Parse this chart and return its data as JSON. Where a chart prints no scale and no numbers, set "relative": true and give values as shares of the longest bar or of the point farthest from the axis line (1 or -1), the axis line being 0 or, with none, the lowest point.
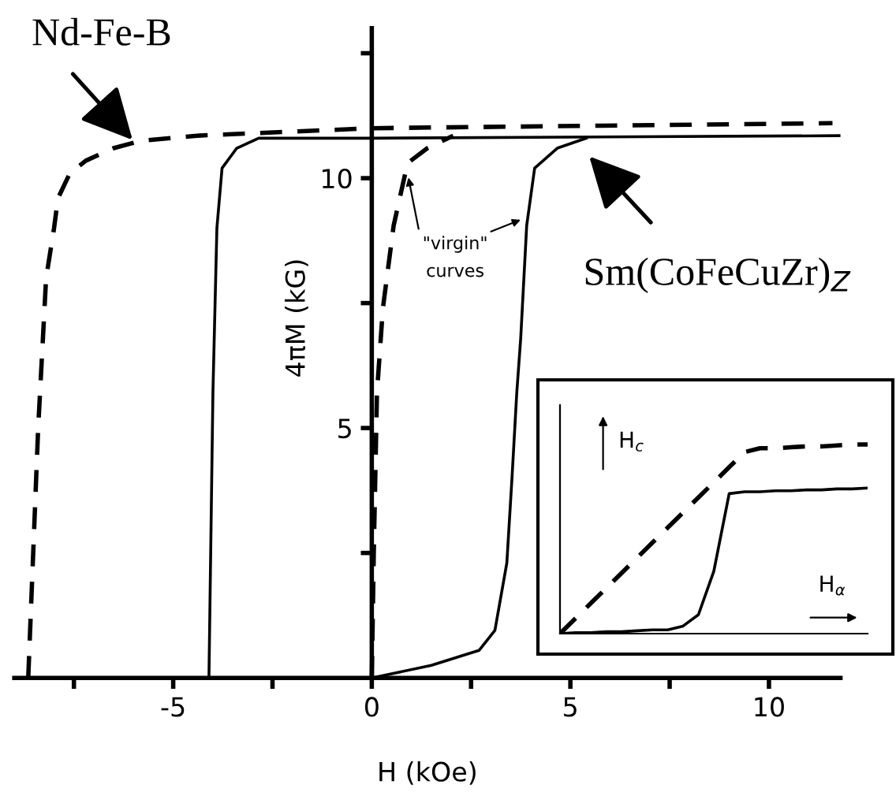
{
  "chart_data": [
    {
      "type": "line",
      "xlabel": "H (kOe)",
      "ylabel": "4πM (kG)",
      "xlim": [
        -9,
        11.8
      ],
      "ylim": [
        0,
        13
      ],
      "xticks": [
        {
          "value": -7.5,
          "label": null
        },
        -5,
        {
          "value": -2.5,
          "label": null
        },
        0,
        {
          "value": 2.5,
          "label": null
        },
        5,
        {
          "value": 7.5,
          "label": null
        },
        10
      ],
      "yticks": [
        {
          "value": 2.5,
          "label": null
        },
        5,
        {
          "value": 7.5,
          "label": null
        },
        10,
        {
          "value": 12.5,
          "label": null
        }
      ],
      "series": [
        {
          "color": "#000000",
          "line_style": "dashed",
          "x": [
            -8.65,
            -8.4,
            -8.2,
            -8.0,
            -7.9,
            -7.6,
            -7.2,
            -6.5,
            -5.8,
            -4.4,
            0,
            11.6
          ],
          "values": [
            0,
            5,
            8,
            9.0,
            9.6,
            10.1,
            10.35,
            10.6,
            10.75,
            10.85,
            11.0,
            11.1
          ]
        },
        {
          "color": "#000000",
          "line_style": "solid",
          "x": [
            -4.1,
            -4.0,
            -3.9,
            -3.77,
            -3.4,
            -2.85,
            0,
            11.8
          ],
          "values": [
            0,
            5.7,
            9.0,
            10.2,
            10.6,
            10.8,
            10.8,
            10.85
          ]
        },
        {
          "color": "#000000",
          "line_style": "dashed",
          "x": [
            0.0,
            0.05,
            0.13,
            0.28,
            0.55,
            0.9,
            1.4,
            2.05
          ],
          "values": [
            0,
            2.5,
            5.7,
            7.4,
            9.05,
            10.3,
            10.6,
            10.85
          ]
        },
        {
          "color": "#000000",
          "line_style": "solid",
          "x": [
            0,
            1.5,
            2.7,
            3.1,
            3.4,
            3.53,
            3.65,
            3.75,
            3.9,
            4.1,
            4.67,
            5.4
          ],
          "values": [
            0,
            0.25,
            0.55,
            0.95,
            2.3,
            4.0,
            5.7,
            6.8,
            9.05,
            10.2,
            10.6,
            10.8
          ]
        }
      ],
      "annotations": [
        "Nd-Fe-B",
        "Sm(CoFeCuZr)$_{Z}$",
        "\"virgin\"\ncurves"
      ]
    },
    {
      "type": "line",
      "relative": true,
      "xlabel": "H$_{α}$",
      "ylabel": "H$_{c}$",
      "categories": [
        null,
        null,
        null,
        null,
        null,
        null,
        null,
        null,
        null,
        null,
        null,
        null,
        null,
        null,
        null,
        null,
        null,
        null,
        null,
        null,
        null
      ],
      "series": [
        {
          "color": "#000000",
          "line_style": "dashed",
          "values": [
            0,
            0.08,
            0.16,
            0.24,
            0.32,
            0.4,
            0.48,
            0.56,
            0.64,
            0.72,
            0.8,
            0.88,
            0.96,
            0.98,
            0.98,
            0.985,
            0.99,
            0.99,
            0.995,
            1.0,
            1.0
          ]
        },
        {
          "color": "#000000",
          "line_style": "solid",
          "values": [
            0,
            0.005,
            0.005,
            0.01,
            0.01,
            0.015,
            0.02,
            0.02,
            0.04,
            0.1,
            0.33,
            0.74,
            0.75,
            0.75,
            0.755,
            0.755,
            0.76,
            0.76,
            0.765,
            0.765,
            0.77
          ]
        }
      ]
    }
  ]
}
